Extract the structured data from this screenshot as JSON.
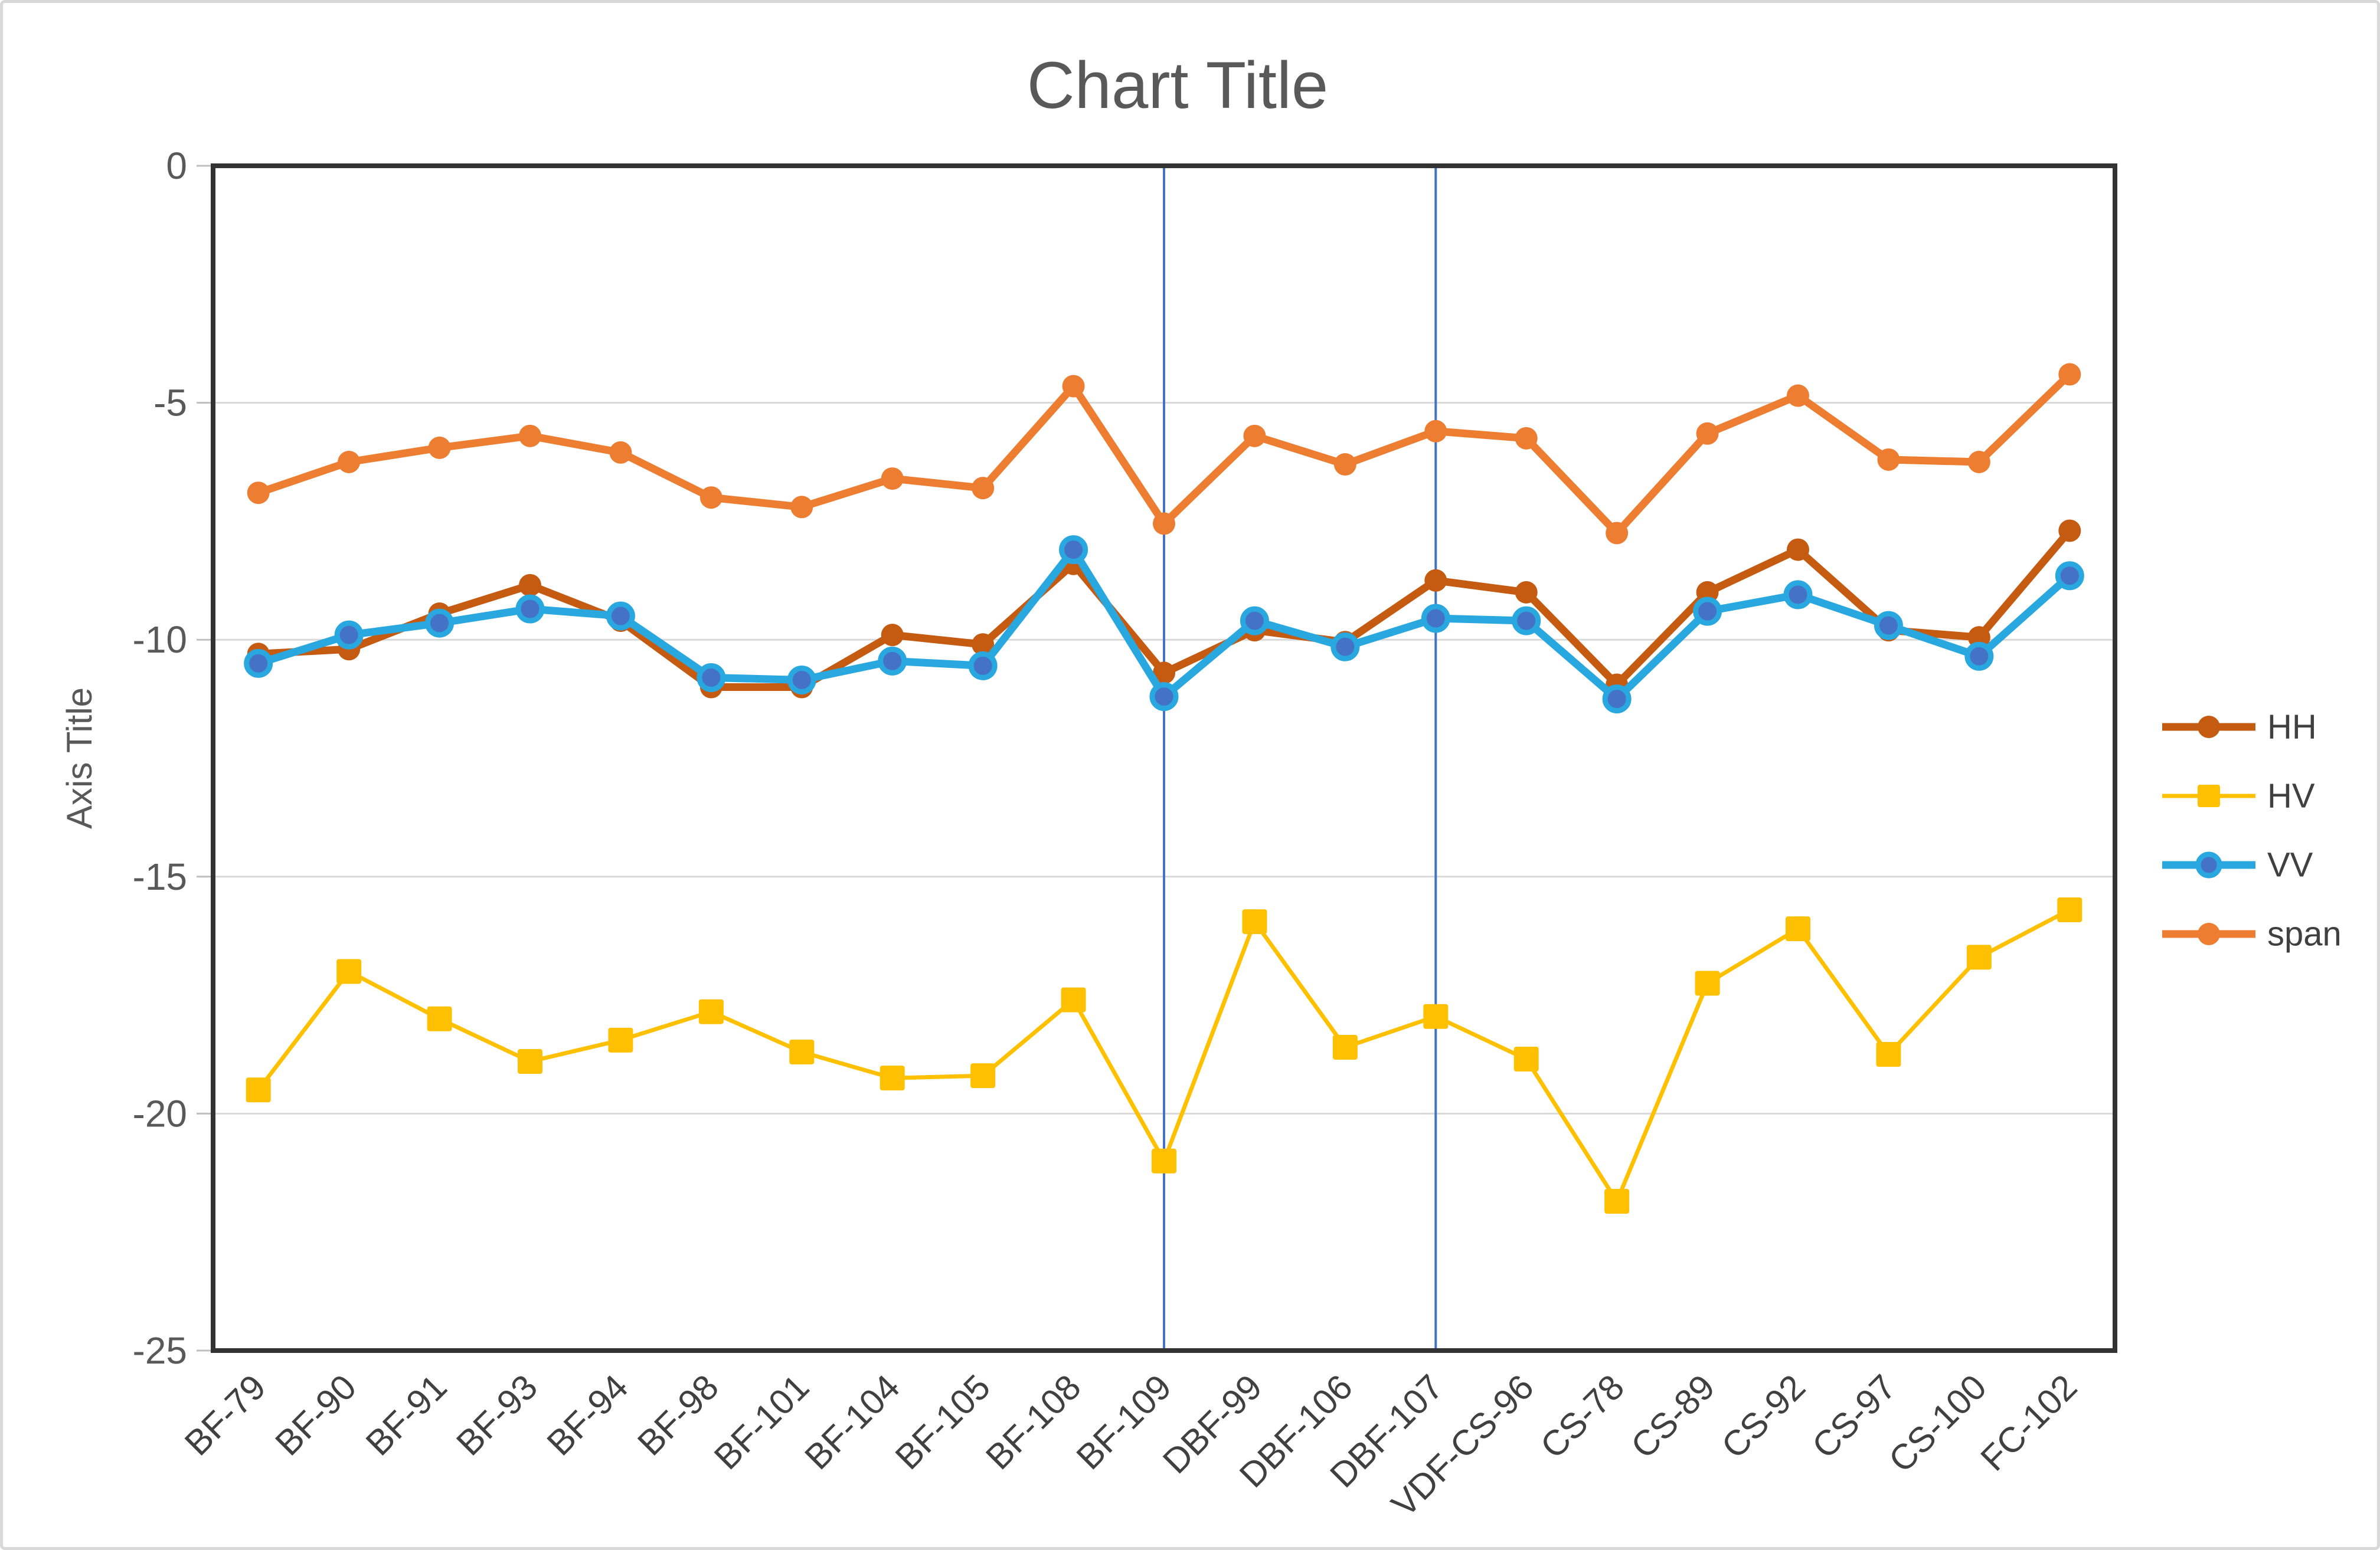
{
  "title": "Chart Title",
  "axis": {
    "y_title": "Axis Title",
    "y_tick_labels": [
      "0",
      "-5",
      "-10",
      "-15",
      "-20",
      "-25"
    ],
    "y_max": 0,
    "y_min": -25,
    "y_step": 5
  },
  "chart_data": {
    "type": "line",
    "title": "Chart Title",
    "xlabel": "",
    "ylabel": "Axis Title",
    "ylim": [
      -25,
      0
    ],
    "grid": true,
    "legend_position": "right",
    "categories": [
      "BF-79",
      "BF-90",
      "BF-91",
      "BF-93",
      "BF-94",
      "BF-98",
      "BF-101",
      "BF-104",
      "BF-105",
      "BF-108",
      "BF-109",
      "DBF-99",
      "DBF-106",
      "DBF-107",
      "VDF-CS-96",
      "CS-78",
      "CS-89",
      "CS-92",
      "CS-97",
      "CS-100",
      "FC-102"
    ],
    "series": [
      {
        "name": "HH",
        "color": "#C55A11",
        "marker": "circle",
        "marker_fill": "#C55A11",
        "line_width": 13,
        "values": [
          -10.3,
          -10.2,
          -9.45,
          -8.85,
          -9.6,
          -11.0,
          -11.0,
          -9.9,
          -10.1,
          -8.4,
          -10.7,
          -9.8,
          -10.05,
          -8.75,
          -9.0,
          -10.95,
          -9.0,
          -8.1,
          -9.8,
          -9.95,
          -7.7
        ]
      },
      {
        "name": "HV",
        "color": "#FFC000",
        "marker": "square",
        "marker_fill": "#FFC000",
        "line_width": 7,
        "values": [
          -19.5,
          -17.0,
          -18.0,
          -18.9,
          -18.45,
          -17.85,
          -18.7,
          -19.25,
          -19.2,
          -17.6,
          -21.0,
          -15.95,
          -18.6,
          -17.95,
          -18.85,
          -21.85,
          -17.25,
          -16.1,
          -18.75,
          -16.7,
          -15.7
        ]
      },
      {
        "name": "VV",
        "color": "#29A8E0",
        "marker": "circle",
        "marker_fill": "#4472C4",
        "line_width": 13,
        "values": [
          -10.5,
          -9.9,
          -9.65,
          -9.35,
          -9.5,
          -10.8,
          -10.85,
          -10.45,
          -10.55,
          -8.1,
          -11.2,
          -9.6,
          -10.15,
          -9.55,
          -9.6,
          -11.25,
          -9.4,
          -9.05,
          -9.7,
          -10.35,
          -8.65
        ]
      },
      {
        "name": "span",
        "color": "#ED7D31",
        "marker": "circle",
        "marker_fill": "#ED7D31",
        "line_width": 13,
        "values": [
          -6.9,
          -6.25,
          -5.95,
          -5.7,
          -6.05,
          -7.0,
          -7.2,
          -6.6,
          -6.8,
          -4.65,
          -7.55,
          -5.7,
          -6.3,
          -5.6,
          -5.75,
          -7.75,
          -5.65,
          -4.85,
          -6.2,
          -6.25,
          -4.4
        ]
      }
    ],
    "vertical_guides": {
      "categories": [
        "BF-109",
        "DBF-107"
      ],
      "color": "#4472C4"
    }
  },
  "colors": {
    "title_text": "#595959",
    "axis_text": "#595959",
    "category_text": "#404040",
    "legend_text": "#404040",
    "gridline": "#D9D9D9",
    "tick": "#BFBFBF",
    "plot_border": "#333333",
    "guide_line": "#4472C4",
    "frame_border": "#D9D9D9",
    "background": "#FFFFFF"
  }
}
